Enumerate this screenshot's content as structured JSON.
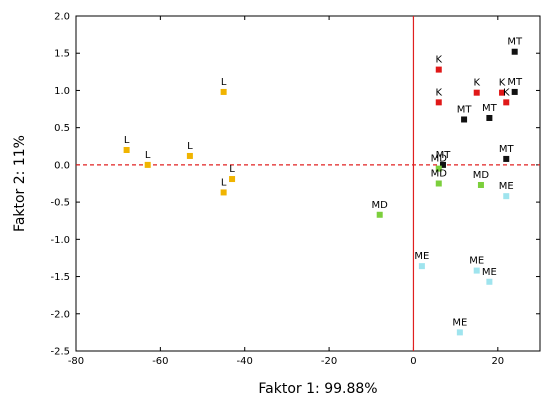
{
  "chart_data": {
    "type": "scatter",
    "xlabel": "Faktor 1: 99.88%",
    "ylabel": "Faktor 2: 11%",
    "xlim": [
      -80,
      30
    ],
    "ylim": [
      -2.5,
      2.0
    ],
    "xticks": [
      -80,
      -60,
      -40,
      -20,
      0,
      20
    ],
    "yticks": [
      2.0,
      1.5,
      1.0,
      0.5,
      0.0,
      -0.5,
      -1.0,
      -1.5,
      -2.0,
      -2.5
    ],
    "xtick_labels": [
      "-80",
      "-60",
      "-40",
      "-20",
      "0",
      "20"
    ],
    "ytick_labels": [
      "2.0",
      "1.5",
      "1.0",
      "0.5",
      "0.0",
      "-0.5",
      "-1.0",
      "-1.5",
      "-2.0",
      "-2.5"
    ],
    "grid": false,
    "reference_lines": {
      "x": 0,
      "y": 0,
      "color": "#e02020",
      "style": "dashed"
    },
    "series": [
      {
        "color": "#f0b400",
        "points": [
          {
            "label": "L",
            "x": -45,
            "y": 0.98
          },
          {
            "label": "L",
            "x": -68,
            "y": 0.2
          },
          {
            "label": "L",
            "x": -63,
            "y": 0.0
          },
          {
            "label": "L",
            "x": -53,
            "y": 0.12
          },
          {
            "label": "L",
            "x": -43,
            "y": -0.19
          },
          {
            "label": "L",
            "x": -45,
            "y": -0.37
          }
        ]
      },
      {
        "color": "#e01818",
        "points": [
          {
            "label": "K",
            "x": 6,
            "y": 1.28
          },
          {
            "label": "K",
            "x": 15,
            "y": 0.97
          },
          {
            "label": "K",
            "x": 6,
            "y": 0.84
          },
          {
            "label": "K",
            "x": 21,
            "y": 0.97
          },
          {
            "label": "K",
            "x": 22,
            "y": 0.84
          }
        ]
      },
      {
        "color": "#111111",
        "points": [
          {
            "label": "MT",
            "x": 24,
            "y": 1.52
          },
          {
            "label": "MT",
            "x": 12,
            "y": 0.61
          },
          {
            "label": "MT",
            "x": 18,
            "y": 0.63
          },
          {
            "label": "MT",
            "x": 24,
            "y": 0.98
          },
          {
            "label": "MT",
            "x": 22,
            "y": 0.08
          },
          {
            "label": "MT",
            "x": 7,
            "y": 0.0
          }
        ]
      },
      {
        "color": "#7ccf3c",
        "points": [
          {
            "label": "MD",
            "x": 6,
            "y": -0.05
          },
          {
            "label": "MD",
            "x": 6,
            "y": -0.25
          },
          {
            "label": "MD",
            "x": 16,
            "y": -0.27
          },
          {
            "label": "MD",
            "x": -8,
            "y": -0.67
          }
        ]
      },
      {
        "color": "#9fe4ee",
        "points": [
          {
            "label": "ME",
            "x": 22,
            "y": -0.42
          },
          {
            "label": "ME",
            "x": 2,
            "y": -1.36
          },
          {
            "label": "ME",
            "x": 15,
            "y": -1.42
          },
          {
            "label": "ME",
            "x": 18,
            "y": -1.57
          },
          {
            "label": "ME",
            "x": 11,
            "y": -2.25
          }
        ]
      }
    ]
  }
}
